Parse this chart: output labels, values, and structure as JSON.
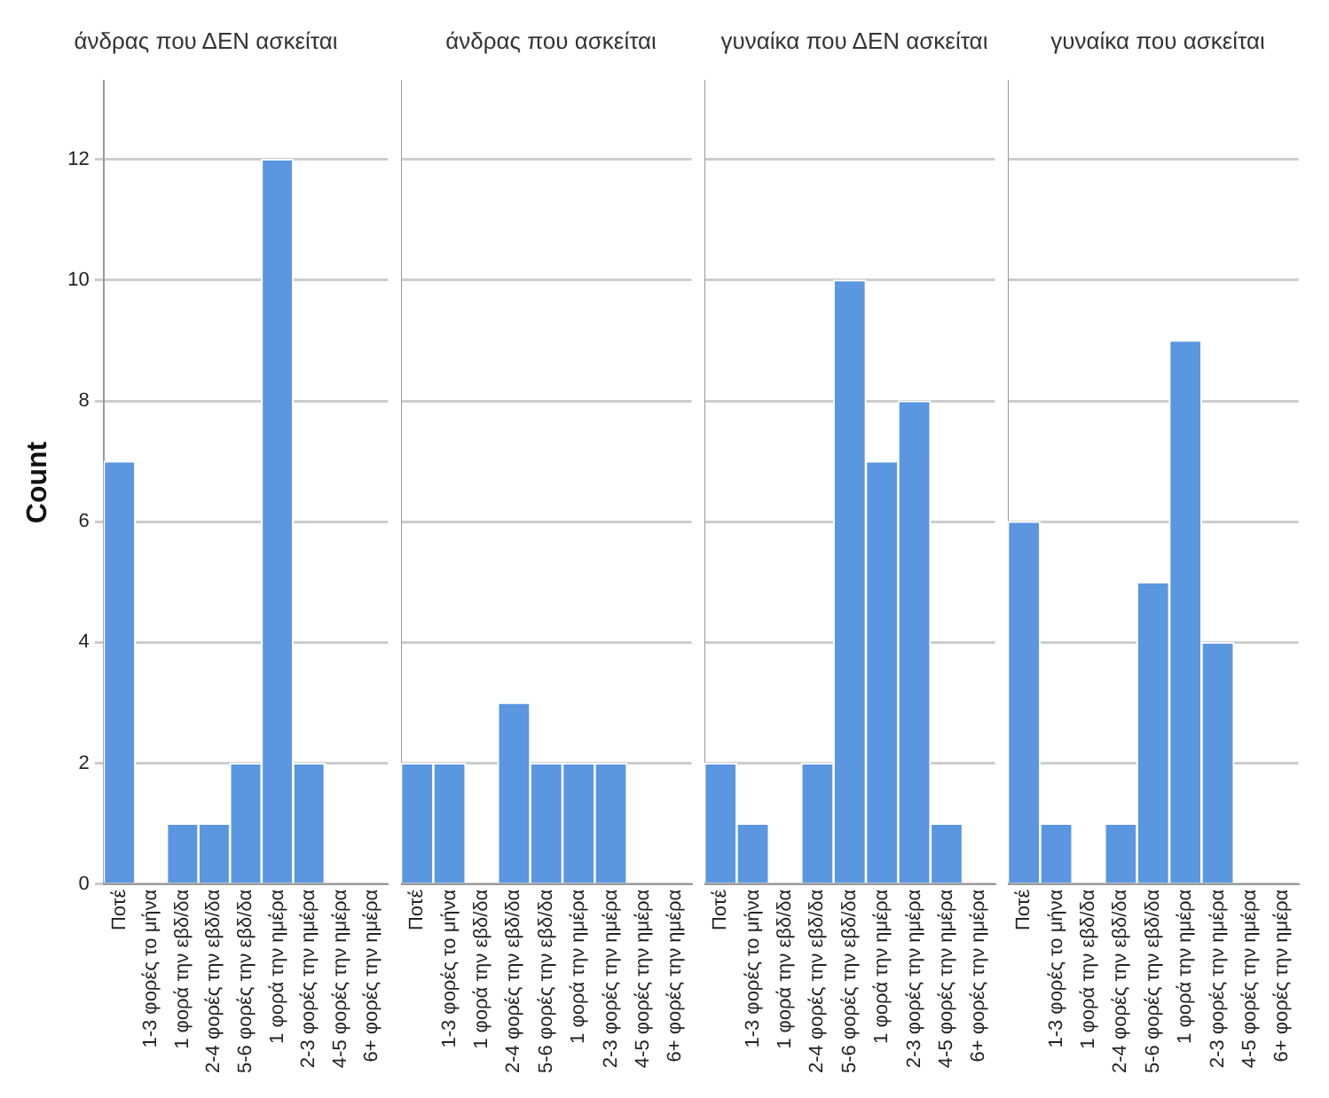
{
  "chart_data": [
    {
      "type": "bar",
      "title": "άνδρας που ΔΕΝ ασκείται",
      "ylabel": "Count",
      "categories": [
        "Ποτέ",
        "1-3 φορές το μήνα",
        "1 φορά την εβδ/δα",
        "2-4 φορές την εβδ/δα",
        "5-6 φορές την εβδ/δα",
        "1 φορά την ημέρα",
        "2-3 φορές την ημέρα",
        "4-5 φορές την ημέρα",
        "6+ φορές την ημέρα"
      ],
      "values": [
        7,
        0,
        1,
        1,
        2,
        12,
        2,
        0,
        0
      ],
      "color": "#5b96e0",
      "ylim": [
        0,
        13.3
      ],
      "yticks": [
        0,
        2,
        4,
        6,
        8,
        10,
        12
      ],
      "grid": "y",
      "legend": false
    },
    {
      "type": "bar",
      "title": "άνδρας που ασκείται",
      "categories": [
        "Ποτέ",
        "1-3 φορές το μήνα",
        "1 φορά την εβδ/δα",
        "2-4 φορές την εβδ/δα",
        "5-6 φορές την εβδ/δα",
        "1 φορά την ημέρα",
        "2-3 φορές την ημέρα",
        "4-5 φορές την ημέρα",
        "6+ φορές την ημέρα"
      ],
      "values": [
        2,
        2,
        0,
        3,
        2,
        2,
        2,
        0,
        0
      ],
      "color": "#5b96e0",
      "ylim": [
        0,
        13.3
      ],
      "yticks": [
        0,
        2,
        4,
        6,
        8,
        10,
        12
      ],
      "grid": "y",
      "legend": false,
      "tick_labels": "x"
    },
    {
      "type": "bar",
      "title": "γυναίκα που ΔΕΝ ασκείται",
      "categories": [
        "Ποτέ",
        "1-3 φορές το μήνα",
        "1 φορά την εβδ/δα",
        "2-4 φορές την εβδ/δα",
        "5-6 φορές την εβδ/δα",
        "1 φορά την ημέρα",
        "2-3 φορές την ημέρα",
        "4-5 φορές την ημέρα",
        "6+ φορές την ημέρα"
      ],
      "values": [
        2,
        1,
        0,
        2,
        10,
        7,
        8,
        1,
        0
      ],
      "color": "#5b96e0",
      "ylim": [
        0,
        13.3
      ],
      "yticks": [
        0,
        2,
        4,
        6,
        8,
        10,
        12
      ],
      "grid": "y",
      "legend": false,
      "tick_labels": "x"
    },
    {
      "type": "bar",
      "title": "γυναίκα που ασκείται",
      "categories": [
        "Ποτέ",
        "1-3 φορές το μήνα",
        "1 φορά την εβδ/δα",
        "2-4 φορές την εβδ/δα",
        "5-6 φορές την εβδ/δα",
        "1 φορά την ημέρα",
        "2-3 φορές την ημέρα",
        "4-5 φορές την ημέρα",
        "6+ φορές την ημέρα"
      ],
      "values": [
        6,
        1,
        0,
        1,
        5,
        9,
        4,
        0,
        0
      ],
      "color": "#5b96e0",
      "ylim": [
        0,
        13.3
      ],
      "yticks": [
        0,
        2,
        4,
        6,
        8,
        10,
        12
      ],
      "grid": "y",
      "legend": false,
      "tick_labels": "x"
    }
  ]
}
